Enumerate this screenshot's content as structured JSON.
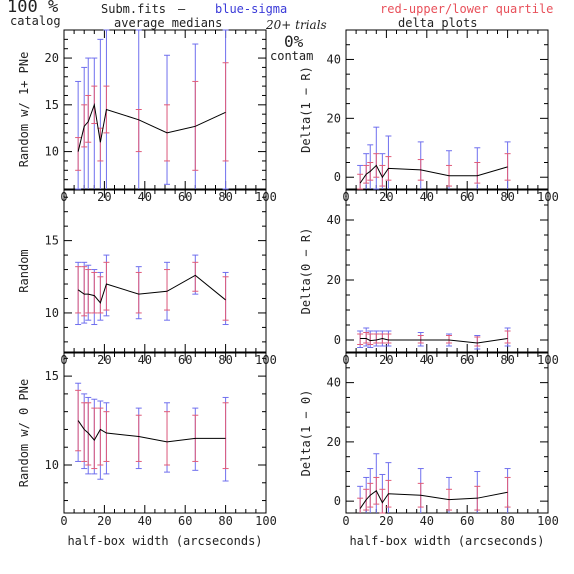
{
  "header": {
    "percent": "100 %",
    "catalog": "catalog",
    "file": "Subm.fits",
    "dash": "–",
    "blue_label": "blue-sigma",
    "red_label": "red-upper/lower quartile",
    "medians": "average medians",
    "trials": "20+ trials",
    "delta": "delta plots",
    "contam_pct": "0%",
    "contam": "contam"
  },
  "colors": {
    "line": "#000000",
    "sigma": "#6f6fee",
    "quartile": "#e05c7a",
    "blue_text": "#3a3ad8",
    "red_text": "#e8505a"
  },
  "chart_data": [
    {
      "type": "line",
      "ylabel": "Random w/ 1+ PNe",
      "xlabel": "",
      "xlim": [
        0,
        100
      ],
      "ylim": [
        6,
        23
      ],
      "xticks": [
        "0",
        "20",
        "40",
        "60",
        "80",
        "100"
      ],
      "yticks": [
        "10",
        "15",
        "20"
      ],
      "x": [
        7,
        10,
        12,
        15,
        18,
        21,
        37,
        51,
        65,
        80
      ],
      "median": [
        10,
        12.7,
        13.2,
        15,
        11,
        14.5,
        13.4,
        12,
        12.7,
        14.2
      ],
      "sigma": [
        [
          6,
          17.5
        ],
        [
          4.5,
          19
        ],
        [
          4,
          20
        ],
        [
          5,
          20
        ],
        [
          4,
          22
        ],
        [
          4,
          23
        ],
        [
          4,
          23
        ],
        [
          6.5,
          20.3
        ],
        [
          4,
          21.5
        ],
        [
          6,
          23
        ]
      ],
      "quartile": [
        [
          8,
          11.5
        ],
        [
          10.5,
          15
        ],
        [
          11,
          16
        ],
        [
          13,
          17
        ],
        [
          9,
          12.5
        ],
        [
          12,
          17
        ],
        [
          10,
          14.5
        ],
        [
          9,
          15
        ],
        [
          8,
          17.5
        ],
        [
          9,
          19.5
        ]
      ]
    },
    {
      "type": "line",
      "ylabel": "Delta(1 − R)",
      "xlabel": "",
      "xlim": [
        0,
        100
      ],
      "ylim": [
        -4,
        50
      ],
      "xticks": [
        "0",
        "20",
        "40",
        "60",
        "80",
        "100"
      ],
      "yticks": [
        "0",
        "20",
        "40"
      ],
      "x": [
        7,
        10,
        12,
        15,
        18,
        21,
        37,
        51,
        65,
        80
      ],
      "median": [
        -2,
        1,
        2,
        4,
        0,
        3,
        2.5,
        0.5,
        0.5,
        3.5
      ],
      "sigma": [
        [
          -7,
          4
        ],
        [
          -6,
          8
        ],
        [
          -5,
          11
        ],
        [
          -4,
          17
        ],
        [
          -6,
          8
        ],
        [
          -6,
          14
        ],
        [
          -5,
          12
        ],
        [
          -6,
          9
        ],
        [
          -7,
          10
        ],
        [
          -5,
          12
        ]
      ],
      "quartile": [
        [
          -4,
          1
        ],
        [
          -2,
          4
        ],
        [
          -1,
          5
        ],
        [
          0,
          8
        ],
        [
          -3,
          4
        ],
        [
          -1,
          7
        ],
        [
          -1,
          6
        ],
        [
          -3,
          4
        ],
        [
          -2,
          5
        ],
        [
          -1,
          8
        ]
      ]
    },
    {
      "type": "line",
      "ylabel": "Random",
      "xlabel": "",
      "xlim": [
        0,
        100
      ],
      "ylim": [
        7.3,
        18.5
      ],
      "xticks": [
        "0",
        "20",
        "40",
        "60",
        "80",
        "100"
      ],
      "yticks": [
        "10",
        "15"
      ],
      "x": [
        7,
        10,
        12,
        15,
        18,
        21,
        37,
        51,
        65,
        80
      ],
      "median": [
        11.6,
        11.3,
        11.3,
        11.2,
        10.7,
        12,
        11.3,
        11.5,
        12.6,
        10.9
      ],
      "sigma": [
        [
          9.2,
          13.5
        ],
        [
          9.3,
          13.5
        ],
        [
          9.5,
          13.3
        ],
        [
          9.2,
          13
        ],
        [
          9.5,
          12.8
        ],
        [
          9.8,
          14
        ],
        [
          9.6,
          13.2
        ],
        [
          9.5,
          13.5
        ],
        [
          11.3,
          14
        ],
        [
          9.2,
          12.8
        ]
      ],
      "quartile": [
        [
          10,
          13.2
        ],
        [
          9.8,
          13.2
        ],
        [
          10,
          13
        ],
        [
          10,
          12.8
        ],
        [
          10,
          12.5
        ],
        [
          10.2,
          13.5
        ],
        [
          10,
          12.8
        ],
        [
          10.2,
          13
        ],
        [
          11.5,
          13.5
        ],
        [
          9.5,
          12.5
        ]
      ]
    },
    {
      "type": "line",
      "ylabel": "Delta(0 − R)",
      "xlabel": "",
      "xlim": [
        0,
        100
      ],
      "ylim": [
        -4,
        50
      ],
      "xticks": [
        "0",
        "20",
        "40",
        "60",
        "80",
        "100"
      ],
      "yticks": [
        "0",
        "20",
        "40"
      ],
      "x": [
        7,
        10,
        12,
        15,
        18,
        21,
        37,
        51,
        65,
        80
      ],
      "median": [
        0.5,
        0.5,
        -0.2,
        0,
        0.5,
        0,
        0,
        0,
        -1,
        0.5
      ],
      "sigma": [
        [
          -2.5,
          3
        ],
        [
          -2,
          4
        ],
        [
          -2.5,
          3
        ],
        [
          -2,
          3
        ],
        [
          -2,
          3
        ],
        [
          -2,
          3
        ],
        [
          -2,
          2.5
        ],
        [
          -2,
          2
        ],
        [
          -3,
          1.5
        ],
        [
          -2,
          4
        ]
      ],
      "quartile": [
        [
          -1.5,
          2
        ],
        [
          -1,
          2.5
        ],
        [
          -1.5,
          2
        ],
        [
          -1,
          2
        ],
        [
          -1,
          2
        ],
        [
          -1,
          2
        ],
        [
          -1,
          1.5
        ],
        [
          -1,
          1.5
        ],
        [
          -2,
          1
        ],
        [
          -1,
          3
        ]
      ]
    },
    {
      "type": "line",
      "ylabel": "Random w/ 0 PNe",
      "xlabel": "half-box width (arcseconds)",
      "xlim": [
        0,
        100
      ],
      "ylim": [
        7.3,
        16.3
      ],
      "xticks": [
        "0",
        "20",
        "40",
        "60",
        "80",
        "100"
      ],
      "yticks": [
        "10",
        "15"
      ],
      "x": [
        7,
        10,
        12,
        15,
        18,
        21,
        37,
        51,
        65,
        80
      ],
      "median": [
        12.5,
        12,
        11.8,
        11.4,
        12,
        11.8,
        11.6,
        11.3,
        11.5,
        11.5
      ],
      "sigma": [
        [
          10.2,
          14.6
        ],
        [
          9.8,
          14
        ],
        [
          9.5,
          13.8
        ],
        [
          9.5,
          13.7
        ],
        [
          9.2,
          13.6
        ],
        [
          9.5,
          13.5
        ],
        [
          9.8,
          13.2
        ],
        [
          9.6,
          13.5
        ],
        [
          9.7,
          13.2
        ],
        [
          9.1,
          13.8
        ]
      ],
      "quartile": [
        [
          10.8,
          14.2
        ],
        [
          10.2,
          13.5
        ],
        [
          10,
          13.5
        ],
        [
          9.8,
          13.2
        ],
        [
          10,
          13.2
        ],
        [
          10.2,
          13
        ],
        [
          10.2,
          12.8
        ],
        [
          10,
          13
        ],
        [
          10.2,
          12.8
        ],
        [
          9.8,
          13.5
        ]
      ]
    },
    {
      "type": "line",
      "ylabel": "Delta(1 − 0)",
      "xlabel": "half-box width (arcseconds)",
      "xlim": [
        0,
        100
      ],
      "ylim": [
        -4,
        50
      ],
      "xticks": [
        "0",
        "20",
        "40",
        "60",
        "80",
        "100"
      ],
      "yticks": [
        "0",
        "20",
        "40"
      ],
      "x": [
        7,
        10,
        12,
        15,
        18,
        21,
        37,
        51,
        65,
        80
      ],
      "median": [
        -2.5,
        0.5,
        2,
        3.5,
        -0.5,
        2.5,
        2,
        0.5,
        1,
        3
      ],
      "sigma": [
        [
          -8,
          5
        ],
        [
          -7,
          8
        ],
        [
          -6,
          11
        ],
        [
          -5,
          16
        ],
        [
          -7,
          9
        ],
        [
          -7,
          13
        ],
        [
          -6,
          11
        ],
        [
          -6,
          8
        ],
        [
          -8,
          10
        ],
        [
          -6,
          11
        ]
      ],
      "quartile": [
        [
          -5,
          1
        ],
        [
          -3,
          4
        ],
        [
          -2,
          6
        ],
        [
          -1,
          8
        ],
        [
          -4,
          4
        ],
        [
          -2,
          7
        ],
        [
          -2,
          6
        ],
        [
          -3,
          4
        ],
        [
          -3,
          5
        ],
        [
          -2,
          8
        ]
      ]
    }
  ]
}
